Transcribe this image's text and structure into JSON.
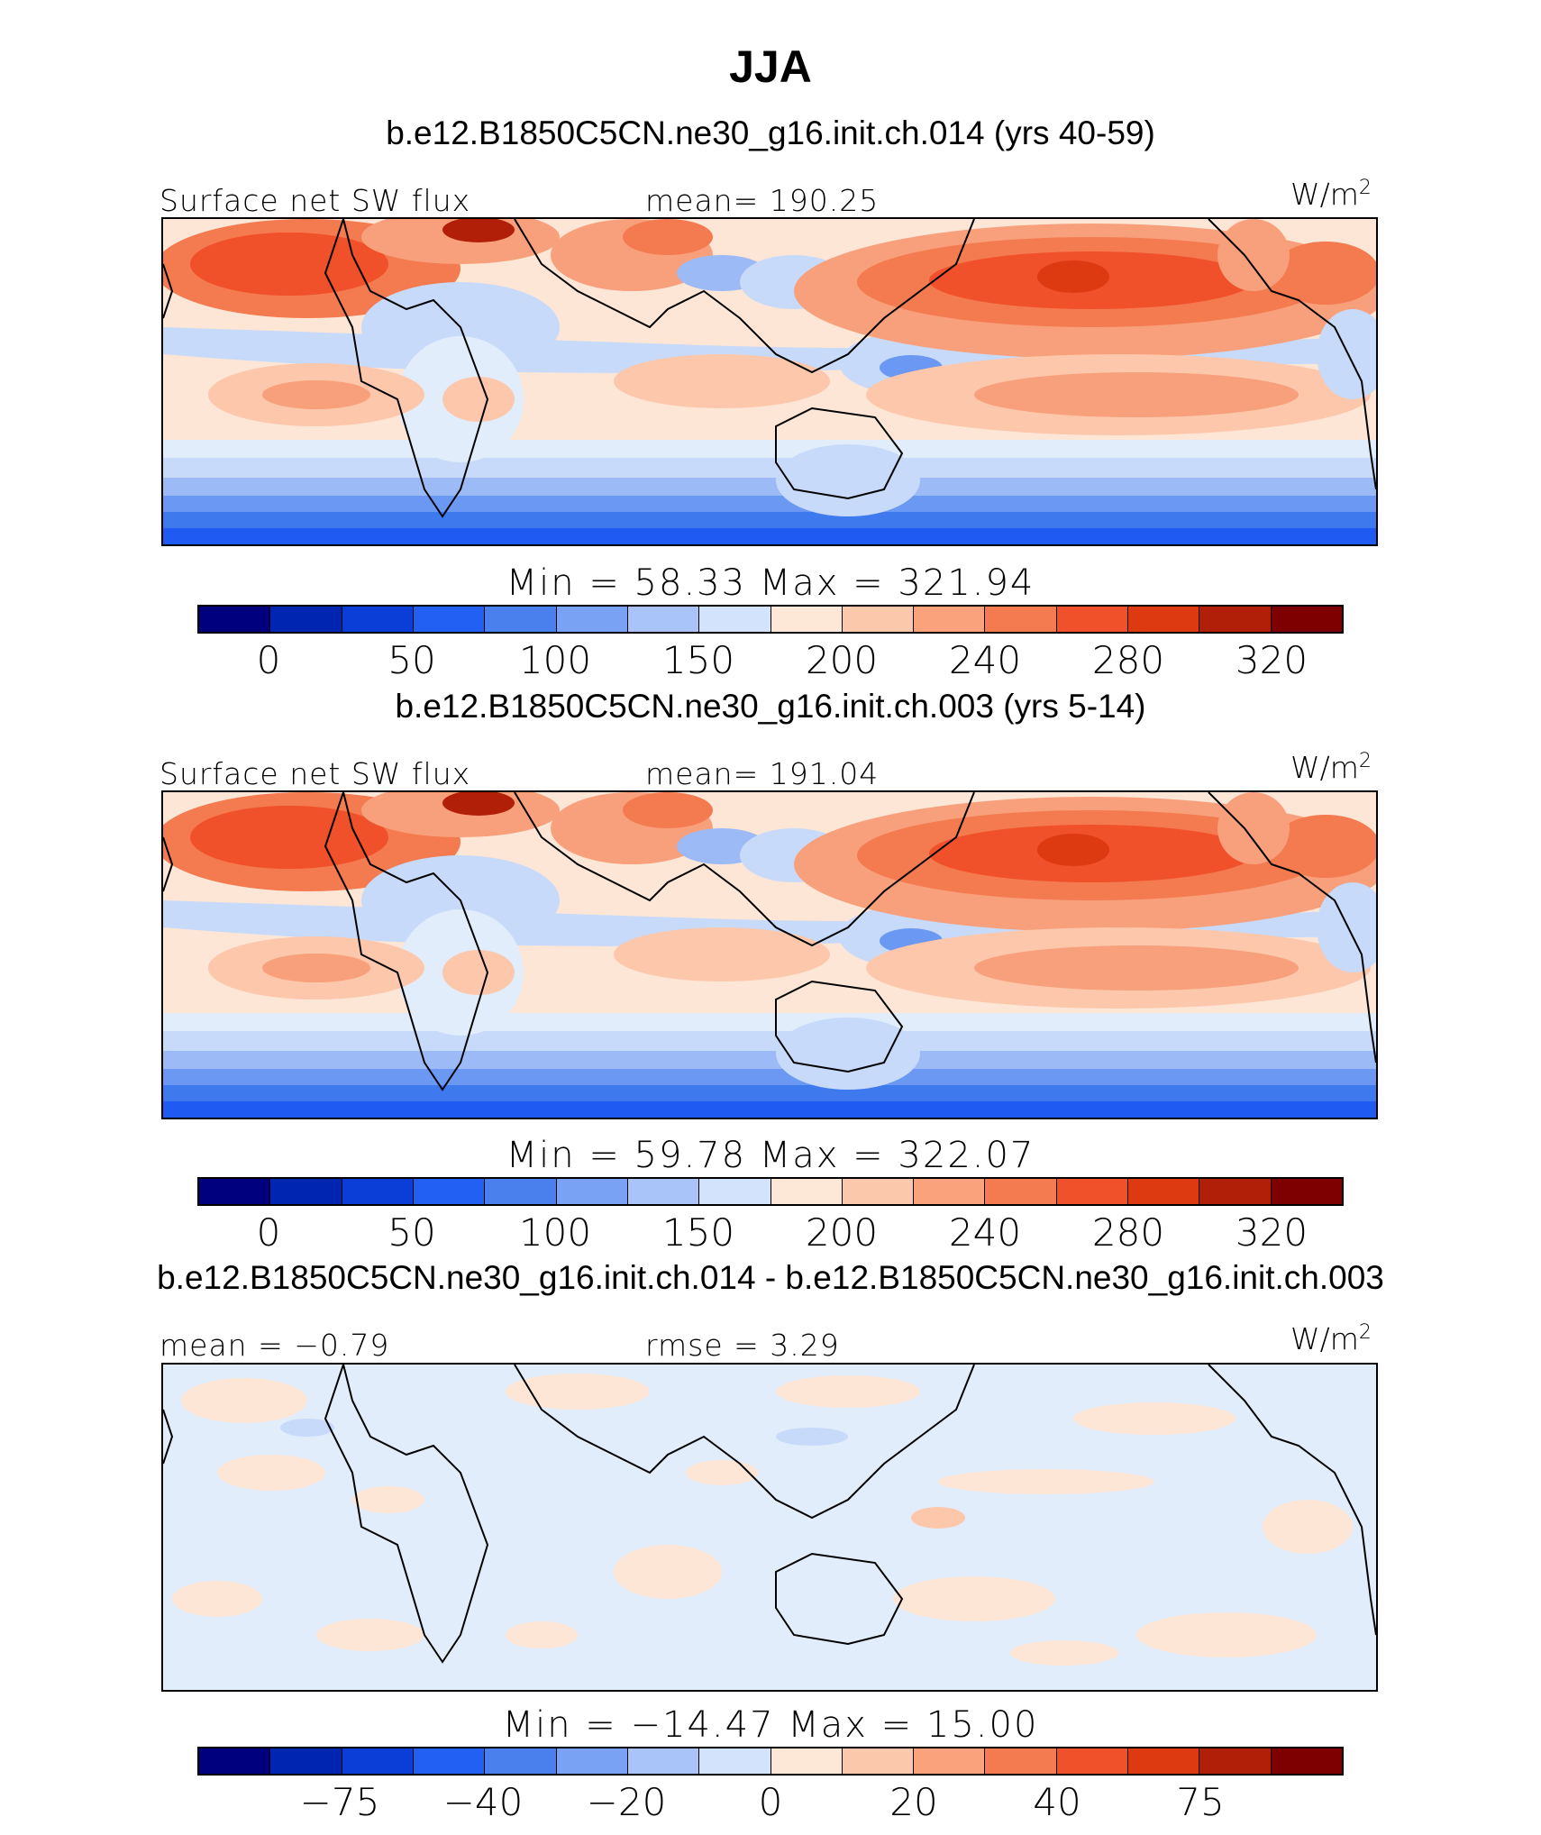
{
  "title": "JJA",
  "colormap": [
    "#00007f",
    "#0022a8",
    "#0b3bd0",
    "#1f5af2",
    "#3e7aee",
    "#6b98f2",
    "#9cbaf6",
    "#c7dafa",
    "#e2edfb",
    "#fde6d6",
    "#fcc7ab",
    "#f8a07c",
    "#f47a50",
    "#f0502a",
    "#dd3a12",
    "#b21f08",
    "#7f0000"
  ],
  "colorbar_colors": [
    "#00007f",
    "#0025b0",
    "#0a3ed6",
    "#2160f2",
    "#4a80ee",
    "#7aa2f4",
    "#a9c4f8",
    "#d2e3fb",
    "#fde8d8",
    "#fcc8ac",
    "#f9a27c",
    "#f47a50",
    "#f0502a",
    "#dd3a12",
    "#b21f08",
    "#7f0000"
  ],
  "panels": [
    {
      "id": "panel-ch014",
      "title": "b.e12.B1850C5CN.ne30_g16.init.ch.014 (yrs 40-59)",
      "left_label": "Surface net SW flux",
      "center_label": "mean= 190.25",
      "units": "W/m",
      "units_exp": "2",
      "min_max": "Min =  58.33 Max = 321.94",
      "ticks": [
        "0",
        "50",
        "100",
        "150",
        "200",
        "240",
        "280",
        "320"
      ]
    },
    {
      "id": "panel-ch003",
      "title": "b.e12.B1850C5CN.ne30_g16.init.ch.003 (yrs 5-14)",
      "left_label": "Surface net SW flux",
      "center_label": "mean= 191.04",
      "units": "W/m",
      "units_exp": "2",
      "min_max": "Min =  59.78 Max = 322.07",
      "ticks": [
        "0",
        "50",
        "100",
        "150",
        "200",
        "240",
        "280",
        "320"
      ]
    },
    {
      "id": "panel-diff",
      "title": "b.e12.B1850C5CN.ne30_g16.init.ch.014 - b.e12.B1850C5CN.ne30_g16.init.ch.003",
      "left_label": "mean =  −0.79",
      "center_label": "rmse =   3.29",
      "units": "W/m",
      "units_exp": "2",
      "min_max": "Min = −14.47 Max =  15.00",
      "ticks": [
        "−75",
        "−40",
        "−20",
        "0",
        "20",
        "40",
        "75"
      ]
    }
  ]
}
